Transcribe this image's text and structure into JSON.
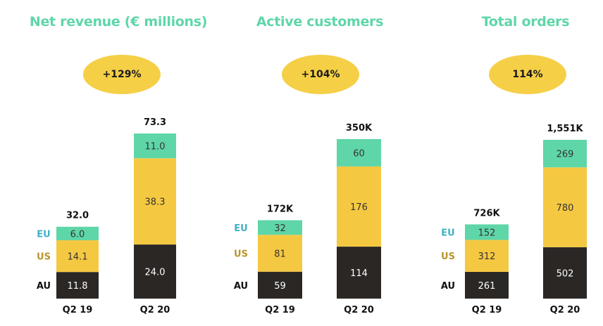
{
  "colors": {
    "EU": "#5fd6a8",
    "US": "#f5c842",
    "AU": "#2a2725",
    "title": "#5fd6a8",
    "badge": "#f5cf46"
  },
  "chart_data": [
    {
      "type": "bar",
      "title": "Net revenue (€ millions)",
      "growth_label": "+129%",
      "categories": [
        "Q2 19",
        "Q2 20"
      ],
      "stack_order": [
        "AU",
        "US",
        "EU"
      ],
      "series": [
        {
          "name": "AU",
          "values": [
            11.8,
            24.0
          ],
          "labels": [
            "11.8",
            "24.0"
          ]
        },
        {
          "name": "US",
          "values": [
            14.1,
            38.3
          ],
          "labels": [
            "14.1",
            "38.3"
          ]
        },
        {
          "name": "EU",
          "values": [
            6.0,
            11.0
          ],
          "labels": [
            "6.0",
            "11.0"
          ]
        }
      ],
      "totals": [
        "32.0",
        "73.3"
      ],
      "ylim": [
        0,
        73.3
      ]
    },
    {
      "type": "bar",
      "title": "Active customers",
      "growth_label": "+104%",
      "categories": [
        "Q2 19",
        "Q2 20"
      ],
      "stack_order": [
        "AU",
        "US",
        "EU"
      ],
      "series": [
        {
          "name": "AU",
          "values": [
            59,
            114
          ],
          "labels": [
            "59",
            "114"
          ]
        },
        {
          "name": "US",
          "values": [
            81,
            176
          ],
          "labels": [
            "81",
            "176"
          ]
        },
        {
          "name": "EU",
          "values": [
            32,
            60
          ],
          "labels": [
            "32",
            "60"
          ]
        }
      ],
      "totals": [
        "172K",
        "350K"
      ],
      "ylim": [
        0,
        350
      ]
    },
    {
      "type": "bar",
      "title": "Total orders",
      "growth_label": "114%",
      "categories": [
        "Q2 19",
        "Q2 20"
      ],
      "stack_order": [
        "AU",
        "US",
        "EU"
      ],
      "series": [
        {
          "name": "AU",
          "values": [
            261,
            502
          ],
          "labels": [
            "261",
            "502"
          ]
        },
        {
          "name": "US",
          "values": [
            312,
            780
          ],
          "labels": [
            "312",
            "780"
          ]
        },
        {
          "name": "EU",
          "values": [
            152,
            269
          ],
          "labels": [
            "152",
            "269"
          ]
        }
      ],
      "totals": [
        "726K",
        "1,551K"
      ],
      "ylim": [
        0,
        1551
      ]
    }
  ]
}
